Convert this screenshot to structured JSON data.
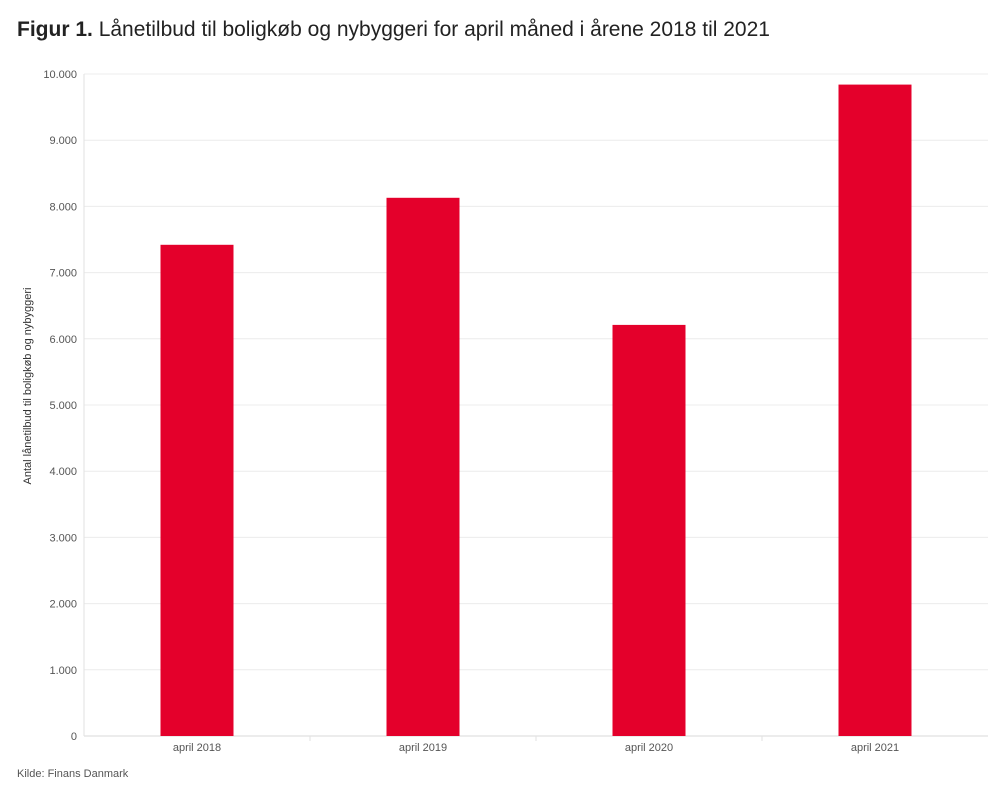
{
  "title": {
    "prefix": "Figur 1.",
    "text": "Lånetilbud til boligkøb og nybyggeri for april måned i årene 2018 til 2021"
  },
  "source": "Kilde: Finans Danmark",
  "chart_data": {
    "type": "bar",
    "categories": [
      "april 2018",
      "april 2019",
      "april 2020",
      "april 2021"
    ],
    "values": [
      7420,
      8130,
      6210,
      9840
    ],
    "ylabel": "Antal lånetilbud til boligkøb og nybyggeri",
    "xlabel": "",
    "ylim": [
      0,
      10000
    ],
    "yticks": [
      0,
      1000,
      2000,
      3000,
      4000,
      5000,
      6000,
      7000,
      8000,
      9000,
      10000
    ],
    "ytick_labels": [
      "0",
      "1.000",
      "2.000",
      "3.000",
      "4.000",
      "5.000",
      "6.000",
      "7.000",
      "8.000",
      "9.000",
      "10.000"
    ],
    "grid": true,
    "legend": "none",
    "bar_color": "#e4002b"
  }
}
